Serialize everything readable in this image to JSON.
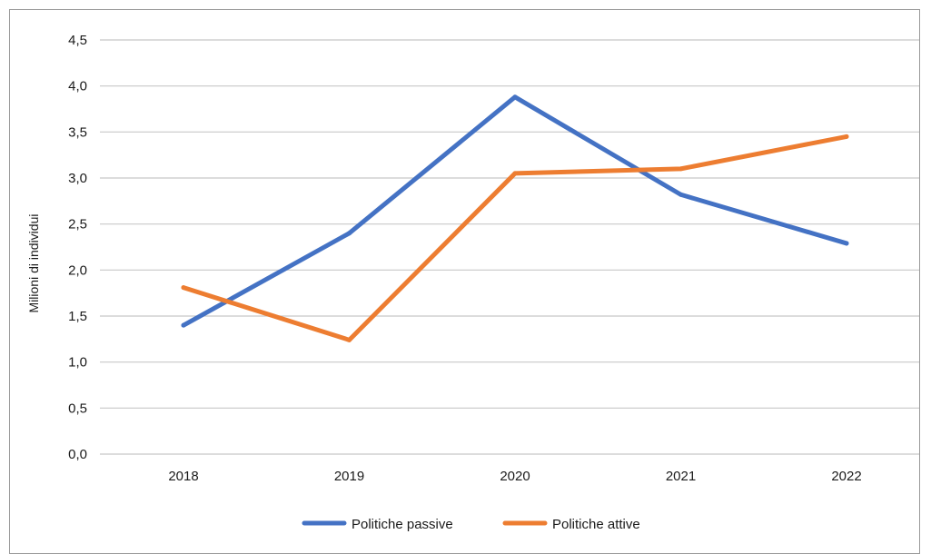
{
  "chart_data": {
    "type": "line",
    "title": "",
    "xlabel": "",
    "ylabel": "Milioni di individui",
    "categories": [
      "2018",
      "2019",
      "2020",
      "2021",
      "2022"
    ],
    "ylim": [
      0,
      4.5
    ],
    "yticks": [
      "0,0",
      "0,5",
      "1,0",
      "1,5",
      "2,0",
      "2,5",
      "3,0",
      "3,5",
      "4,0",
      "4,5"
    ],
    "ytick_values": [
      0,
      0.5,
      1.0,
      1.5,
      2.0,
      2.5,
      3.0,
      3.5,
      4.0,
      4.5
    ],
    "grid": true,
    "legend_position": "bottom",
    "series": [
      {
        "name": "Politiche passive",
        "color": "#4472c4",
        "values": [
          1.4,
          2.4,
          3.88,
          2.82,
          2.29
        ]
      },
      {
        "name": "Politiche attive",
        "color": "#ed7d31",
        "values": [
          1.81,
          1.24,
          3.05,
          3.1,
          3.45
        ]
      }
    ]
  }
}
